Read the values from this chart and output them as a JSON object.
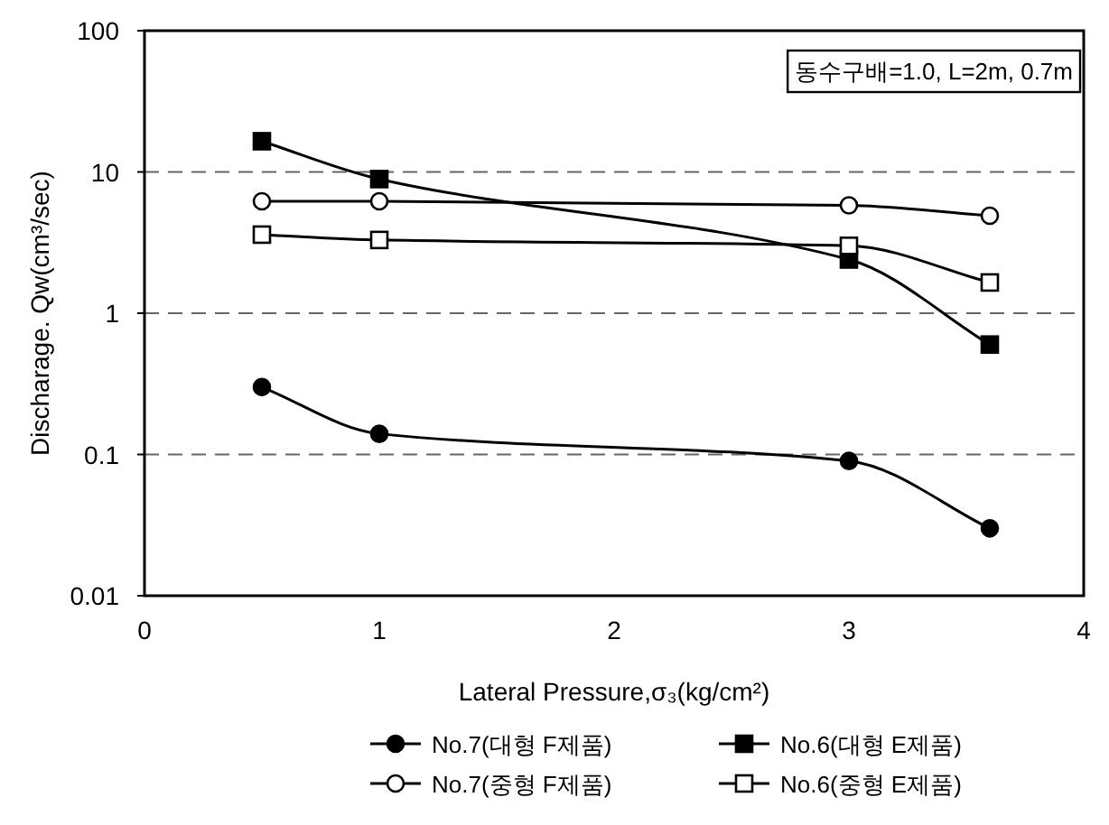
{
  "chart_data": {
    "type": "line",
    "xlabel": "Lateral Pressure,σ₃(kg/cm²)",
    "ylabel": "Discharage. Qw(cm³/sec)",
    "annotations": [
      "동수구배=1.0, L=2m, 0.7m"
    ],
    "x": [
      0.5,
      1,
      3,
      3.6
    ],
    "series": [
      {
        "name": "No.7(대형 F제품)",
        "color": "#000000",
        "marker": "circle",
        "values": [
          0.3,
          0.14,
          0.09,
          0.03
        ]
      },
      {
        "name": "No.6(대형 E제품)",
        "color": "#000000",
        "marker": "square",
        "values": [
          16.5,
          8.9,
          2.4,
          0.6
        ]
      },
      {
        "name": "No.7(중형 F제품)",
        "color": "#000000",
        "marker": "circle",
        "values": [
          6.2,
          6.2,
          5.8,
          4.9
        ]
      },
      {
        "name": "No.6(중형 E제품)",
        "color": "#000000",
        "marker": "square",
        "values": [
          3.6,
          3.3,
          3.0,
          1.65
        ]
      }
    ],
    "log": "y",
    "xlim": [
      0,
      4
    ],
    "xticks": [
      0,
      1,
      2,
      3,
      4
    ],
    "ylim": [
      0.01,
      100
    ],
    "yticks": [
      0.01,
      0.1,
      1,
      10,
      100
    ],
    "grid": "y",
    "line_style": "solid",
    "legend": "bottom"
  }
}
